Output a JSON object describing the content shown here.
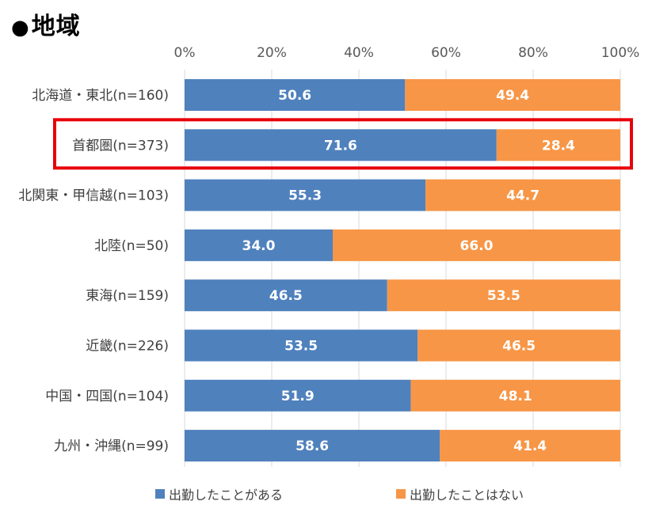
{
  "title": "地域",
  "title_bullet": "●",
  "chart_data": {
    "type": "bar",
    "orientation": "horizontal",
    "stacked": "percent",
    "categories": [
      "北海道・東北(n=160)",
      "首都圏(n=373)",
      "北関東・甲信越(n=103)",
      "北陸(n=50)",
      "東海(n=159)",
      "近畿(n=226)",
      "中国・四国(n=104)",
      "九州・沖縄(n=99)"
    ],
    "series": [
      {
        "name": "出勤したことがある",
        "color": "#4F81BD",
        "values": [
          50.6,
          71.6,
          55.3,
          34.0,
          46.5,
          53.5,
          51.9,
          58.6
        ]
      },
      {
        "name": "出勤したことはない",
        "color": "#F79646",
        "values": [
          49.4,
          28.4,
          44.7,
          66.0,
          53.5,
          46.5,
          48.1,
          41.4
        ]
      }
    ],
    "x_ticks": [
      "0%",
      "20%",
      "40%",
      "60%",
      "80%",
      "100%"
    ],
    "xlim": [
      0,
      100
    ],
    "grid": true,
    "axis_position": "top",
    "legend_position": "bottom",
    "highlight": {
      "category": "首都圏(n=373)",
      "color": "#E8000B"
    }
  }
}
